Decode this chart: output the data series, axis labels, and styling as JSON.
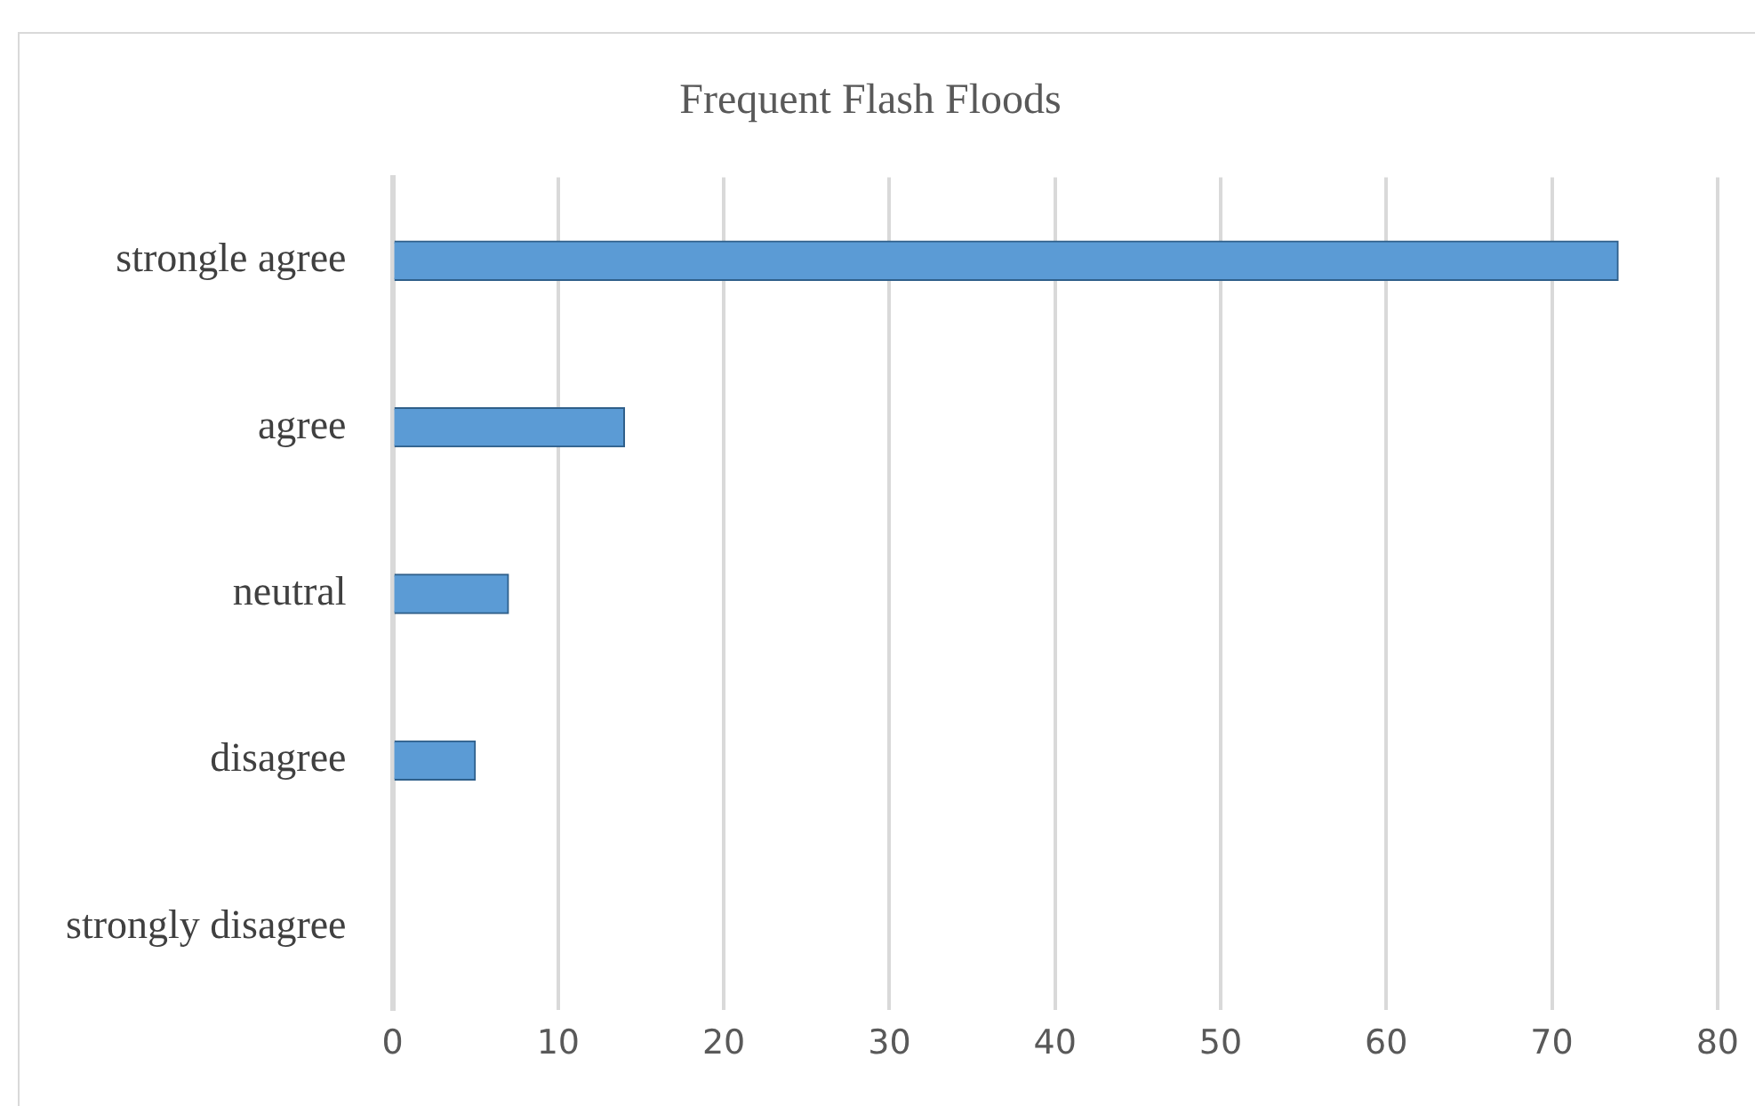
{
  "chart_data": {
    "type": "bar",
    "orientation": "horizontal",
    "title": "Frequent Flash Floods",
    "categories": [
      "strongle agree",
      "agree",
      "neutral",
      "disagree",
      "strongly disagree"
    ],
    "values": [
      74,
      14,
      7,
      5,
      0
    ],
    "color": "#5b9bd5",
    "xlim": [
      0,
      80
    ],
    "xticks": [
      0,
      10,
      20,
      30,
      40,
      50,
      60,
      70,
      80
    ],
    "grid": "x",
    "legend": false
  }
}
